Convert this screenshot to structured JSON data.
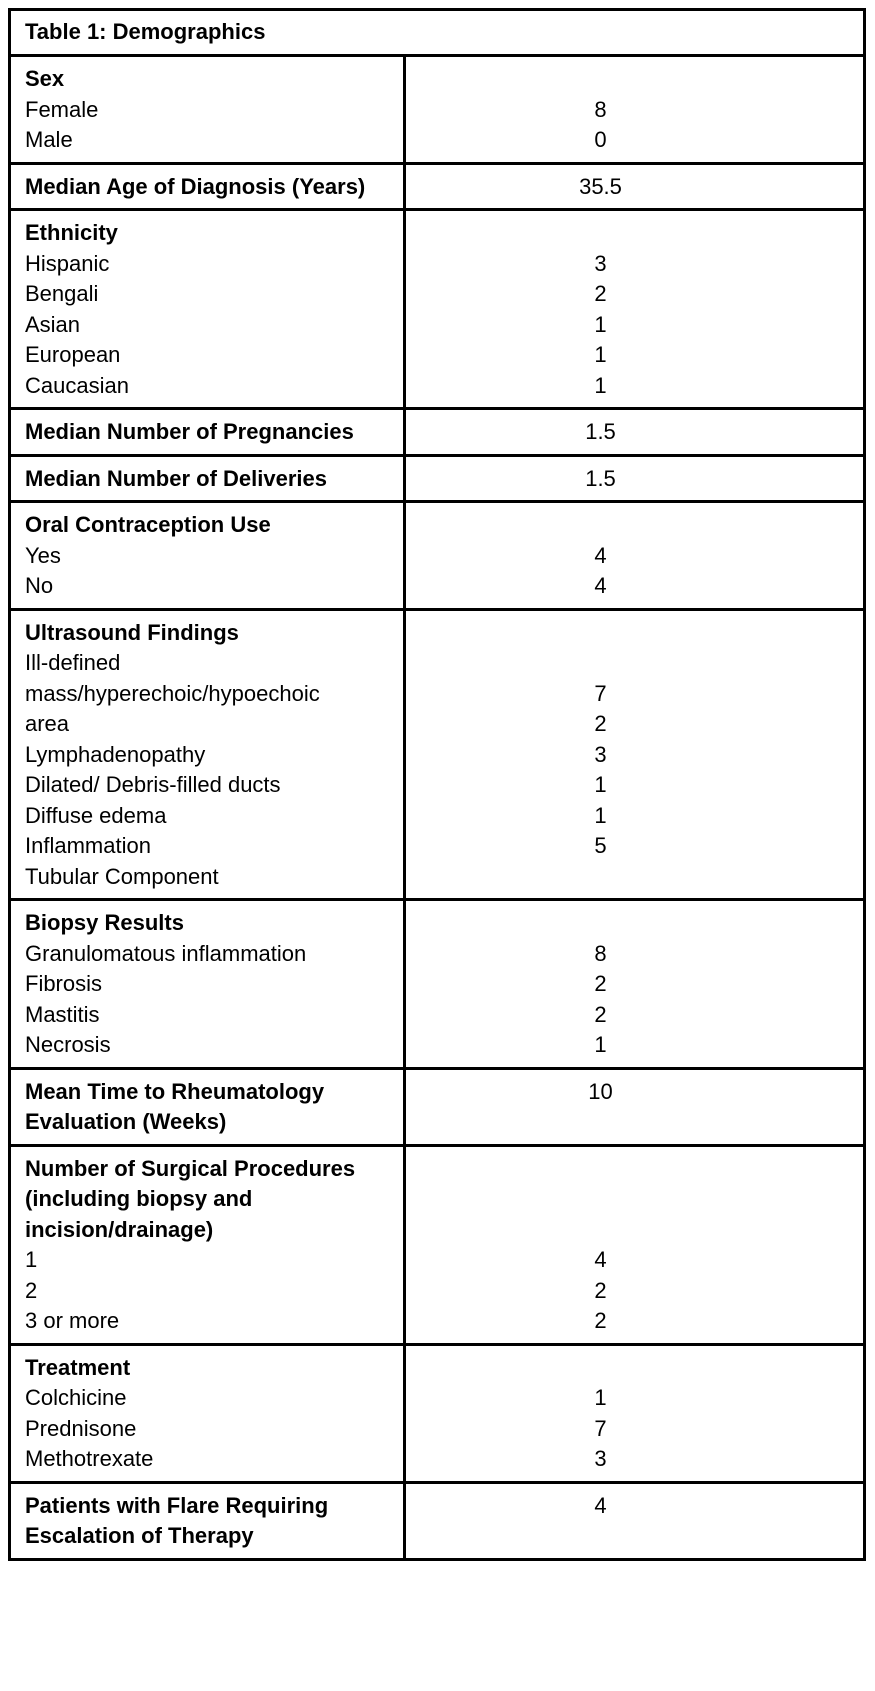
{
  "table": {
    "title": "Table 1: Demographics",
    "rows": [
      {
        "name": "sex",
        "lines": [
          {
            "label": "Sex",
            "bold": true,
            "value": ""
          },
          {
            "label": "Female",
            "value": "8"
          },
          {
            "label": "Male",
            "value": "0"
          }
        ]
      },
      {
        "name": "median-age-of-diagnosis",
        "lines": [
          {
            "label": "Median Age of Diagnosis (Years)",
            "bold": true,
            "value": "35.5"
          }
        ]
      },
      {
        "name": "ethnicity",
        "lines": [
          {
            "label": "Ethnicity",
            "bold": true,
            "value": ""
          },
          {
            "label": "Hispanic",
            "value": "3"
          },
          {
            "label": "Bengali",
            "value": "2"
          },
          {
            "label": "Asian",
            "value": "1"
          },
          {
            "label": "European",
            "value": "1"
          },
          {
            "label": "Caucasian",
            "value": "1"
          }
        ]
      },
      {
        "name": "median-number-of-pregnancies",
        "lines": [
          {
            "label": "Median Number of Pregnancies",
            "bold": true,
            "value": "1.5"
          }
        ]
      },
      {
        "name": "median-number-of-deliveries",
        "lines": [
          {
            "label": "Median Number of Deliveries",
            "bold": true,
            "value": "1.5"
          }
        ]
      },
      {
        "name": "oral-contraception-use",
        "lines": [
          {
            "label": "Oral Contraception Use",
            "bold": true,
            "value": ""
          },
          {
            "label": "Yes",
            "value": "4"
          },
          {
            "label": "No",
            "value": "4"
          }
        ]
      },
      {
        "name": "ultrasound-findings",
        "lines": [
          {
            "label": "Ultrasound Findings",
            "bold": true,
            "value": ""
          },
          {
            "label": "Ill-defined",
            "value": ""
          },
          {
            "label": "mass/hyperechoic/hypoechoic",
            "value": "7"
          },
          {
            "label": "area",
            "value": "2"
          },
          {
            "label": "Lymphadenopathy",
            "value": "3"
          },
          {
            "label": "Dilated/ Debris-filled ducts",
            "value": "1"
          },
          {
            "label": "Diffuse edema",
            "value": "1"
          },
          {
            "label": "Inflammation",
            "value": "5"
          },
          {
            "label": "Tubular Component",
            "value": ""
          }
        ]
      },
      {
        "name": "biopsy-results",
        "lines": [
          {
            "label": "Biopsy Results",
            "bold": true,
            "value": ""
          },
          {
            "label": "Granulomatous inflammation",
            "value": "8"
          },
          {
            "label": "Fibrosis",
            "value": "2"
          },
          {
            "label": "Mastitis",
            "value": "2"
          },
          {
            "label": "Necrosis",
            "value": "1"
          }
        ]
      },
      {
        "name": "mean-time-to-rheumatology-evaluation",
        "lines": [
          {
            "label": "Mean Time to Rheumatology",
            "bold": true,
            "value": "10"
          },
          {
            "label": "Evaluation (Weeks)",
            "bold": true,
            "value": ""
          }
        ]
      },
      {
        "name": "number-of-surgical-procedures",
        "lines": [
          {
            "label": "Number of Surgical Procedures",
            "bold": true,
            "value": ""
          },
          {
            "label": "(including biopsy and",
            "bold": true,
            "value": ""
          },
          {
            "label": "incision/drainage)",
            "bold": true,
            "value": ""
          },
          {
            "label": "1",
            "value": "4"
          },
          {
            "label": "2",
            "value": "2"
          },
          {
            "label": "3 or more",
            "value": "2"
          }
        ]
      },
      {
        "name": "treatment",
        "lines": [
          {
            "label": "Treatment",
            "bold": true,
            "value": ""
          },
          {
            "label": "Colchicine",
            "value": "1"
          },
          {
            "label": "Prednisone",
            "value": "7"
          },
          {
            "label": "Methotrexate",
            "value": "3"
          }
        ]
      },
      {
        "name": "patients-with-flare-requiring-escalation",
        "lines": [
          {
            "label": "Patients with Flare Requiring",
            "bold": true,
            "value": "4"
          },
          {
            "label": "Escalation of Therapy",
            "bold": true,
            "value": ""
          }
        ]
      }
    ]
  }
}
